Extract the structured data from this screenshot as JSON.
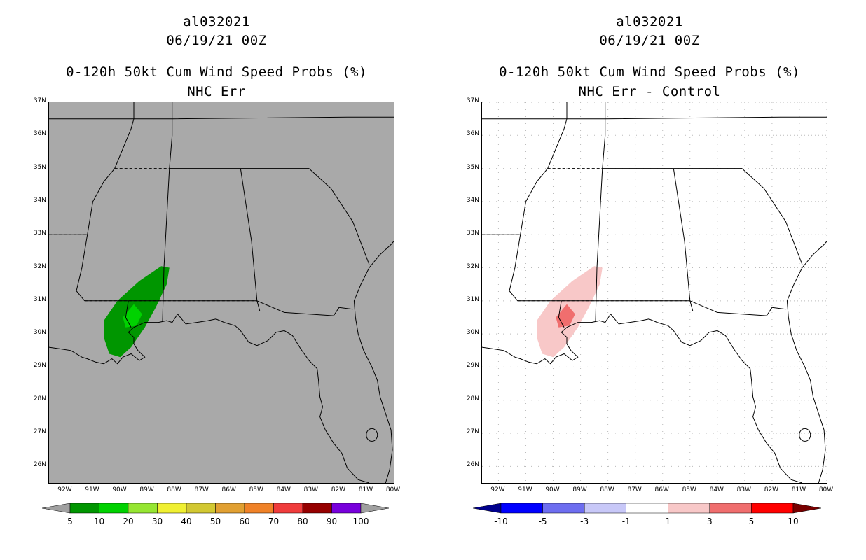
{
  "left_panel": {
    "title_line1": "al032021",
    "title_line2": "06/19/21 00Z",
    "title_line3": "0-120h 50kt Cum Wind Speed Probs (%)",
    "title_line4": "NHC Err",
    "background_color": "#a9a9a9",
    "colorbar": {
      "colors": [
        "#009600",
        "#00d200",
        "#96e632",
        "#f0f032",
        "#d2c832",
        "#e1a032",
        "#f08228",
        "#f03c3c",
        "#960000",
        "#7800dc"
      ],
      "labels": [
        "5",
        "10",
        "20",
        "30",
        "40",
        "50",
        "60",
        "70",
        "80",
        "90",
        "100"
      ],
      "end_arrow_color": "#a0a0a0"
    }
  },
  "right_panel": {
    "title_line1": "al032021",
    "title_line2": "06/19/21 00Z",
    "title_line3": "0-120h 50kt Cum Wind Speed Probs (%)",
    "title_line4": "NHC Err - Control",
    "background_color": "#ffffff",
    "colorbar": {
      "colors": [
        "#0000ff",
        "#6e6ef0",
        "#c8c8f8",
        "#ffffff",
        "#f8c8c8",
        "#f06e6e",
        "#ff0000"
      ],
      "labels": [
        "-10",
        "-5",
        "-3",
        "-1",
        "1",
        "3",
        "5",
        "10"
      ],
      "low_arrow_color": "#00008c",
      "high_arrow_color": "#780000"
    }
  },
  "lat_labels": [
    "37N",
    "36N",
    "35N",
    "34N",
    "33N",
    "32N",
    "31N",
    "30N",
    "29N",
    "28N",
    "27N",
    "26N"
  ],
  "lon_labels": [
    "92W",
    "91W",
    "90W",
    "89W",
    "88W",
    "87W",
    "86W",
    "85W",
    "84W",
    "83W",
    "82W",
    "81W",
    "80W"
  ],
  "map_extent": {
    "lon_min": -92.6,
    "lon_max": -80.0,
    "lat_min": 25.5,
    "lat_max": 37.0
  },
  "storm_region_left": {
    "outer_color": "#009600",
    "inner_color": "#00d200"
  },
  "storm_region_right": {
    "outer_color": "#f8c8c8",
    "inner_color": "#f06e6e"
  }
}
